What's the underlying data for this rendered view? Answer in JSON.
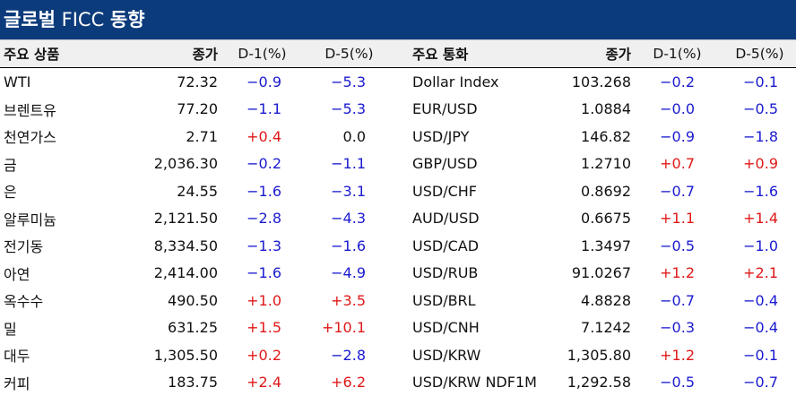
{
  "title": {
    "main": "글로벌",
    "sub": " FICC ",
    "tail": "동향"
  },
  "headers": {
    "product": "주요 상품",
    "price1": "종가",
    "d1_1": "D-1(%)",
    "d5_1": "D-5(%)",
    "currency": "주요 통화",
    "price2": "종가",
    "d1_2": "D-1(%)",
    "d5_2": "D-5(%)"
  },
  "colors": {
    "header_bg": "#0c3b7c",
    "negative": "#1a1ad0",
    "positive": "#e01818"
  },
  "rows": [
    {
      "product": "WTI",
      "price1": "72.32",
      "d1_1": "−0.9",
      "d5_1": "−5.3",
      "currency": "Dollar Index",
      "price2": "103.268",
      "d1_2": "−0.2",
      "d5_2": "−0.1"
    },
    {
      "product": "브렌트유",
      "price1": "77.20",
      "d1_1": "−1.1",
      "d5_1": "−5.3",
      "currency": "EUR/USD",
      "price2": "1.0884",
      "d1_2": "−0.0",
      "d5_2": "−0.5"
    },
    {
      "product": "천연가스",
      "price1": "2.71",
      "d1_1": "+0.4",
      "d5_1": "0.0",
      "currency": "USD/JPY",
      "price2": "146.82",
      "d1_2": "−0.9",
      "d5_2": "−1.8"
    },
    {
      "product": "금",
      "price1": "2,036.30",
      "d1_1": "−0.2",
      "d5_1": "−1.1",
      "currency": "GBP/USD",
      "price2": "1.2710",
      "d1_2": "+0.7",
      "d5_2": "+0.9"
    },
    {
      "product": "은",
      "price1": "24.55",
      "d1_1": "−1.6",
      "d5_1": "−3.1",
      "currency": "USD/CHF",
      "price2": "0.8692",
      "d1_2": "−0.7",
      "d5_2": "−1.6"
    },
    {
      "product": "알루미늄",
      "price1": "2,121.50",
      "d1_1": "−2.8",
      "d5_1": "−4.3",
      "currency": "AUD/USD",
      "price2": "0.6675",
      "d1_2": "+1.1",
      "d5_2": "+1.4"
    },
    {
      "product": "전기동",
      "price1": "8,334.50",
      "d1_1": "−1.3",
      "d5_1": "−1.6",
      "currency": "USD/CAD",
      "price2": "1.3497",
      "d1_2": "−0.5",
      "d5_2": "−1.0"
    },
    {
      "product": "아연",
      "price1": "2,414.00",
      "d1_1": "−1.6",
      "d5_1": "−4.9",
      "currency": "USD/RUB",
      "price2": "91.0267",
      "d1_2": "+1.2",
      "d5_2": "+2.1"
    },
    {
      "product": "옥수수",
      "price1": "490.50",
      "d1_1": "+1.0",
      "d5_1": "+3.5",
      "currency": "USD/BRL",
      "price2": "4.8828",
      "d1_2": "−0.7",
      "d5_2": "−0.4"
    },
    {
      "product": "밀",
      "price1": "631.25",
      "d1_1": "+1.5",
      "d5_1": "+10.1",
      "currency": "USD/CNH",
      "price2": "7.1242",
      "d1_2": "−0.3",
      "d5_2": "−0.4"
    },
    {
      "product": "대두",
      "price1": "1,305.50",
      "d1_1": "+0.2",
      "d5_1": "−2.8",
      "currency": "USD/KRW",
      "price2": "1,305.80",
      "d1_2": "+1.2",
      "d5_2": "−0.1"
    },
    {
      "product": "커피",
      "price1": "183.75",
      "d1_1": "+2.4",
      "d5_1": "+6.2",
      "currency": "USD/KRW NDF1M",
      "price2": "1,292.58",
      "d1_2": "−0.5",
      "d5_2": "−0.7"
    }
  ]
}
